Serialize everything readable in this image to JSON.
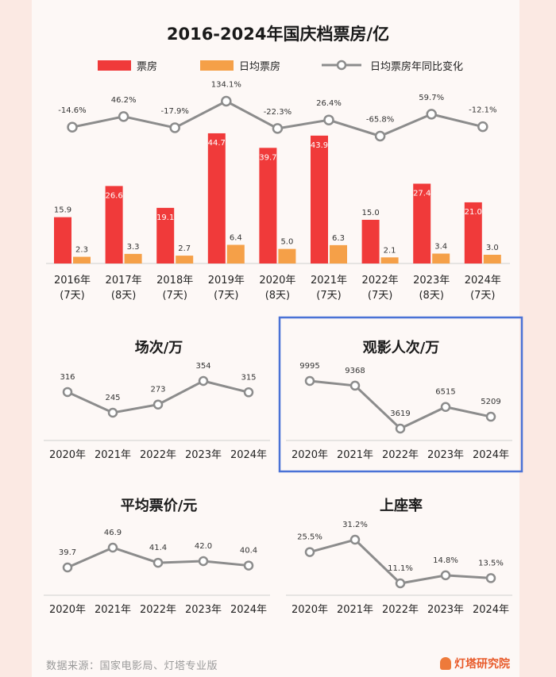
{
  "main_title": "2016-2024年国庆档票房/亿",
  "legend": {
    "box_office": "票房",
    "daily_box_office": "日均票房",
    "yoy_daily": "日均票房年同比变化"
  },
  "colors": {
    "red": "#f03a3a",
    "orange": "#f5a048",
    "line": "#8c8c8c",
    "highlight_border": "#4a72d6"
  },
  "chart_data": [
    {
      "type": "bar",
      "title": "2016-2024年国庆档票房/亿",
      "categories": [
        "2016年",
        "2017年",
        "2018年",
        "2019年",
        "2020年",
        "2021年",
        "2022年",
        "2023年",
        "2024年"
      ],
      "category_sublabels": [
        "(7天)",
        "(8天)",
        "(7天)",
        "(7天)",
        "(8天)",
        "(7天)",
        "(7天)",
        "(8天)",
        "(7天)"
      ],
      "series": [
        {
          "name": "票房",
          "values": [
            15.9,
            26.6,
            19.1,
            44.7,
            39.7,
            43.9,
            15.0,
            27.4,
            21.0
          ]
        },
        {
          "name": "日均票房",
          "values": [
            2.3,
            3.3,
            2.7,
            6.4,
            5.0,
            6.3,
            2.1,
            3.4,
            3.0
          ]
        },
        {
          "name": "日均票房年同比变化",
          "type": "line",
          "values": [
            -14.6,
            46.2,
            -17.9,
            134.1,
            -22.3,
            26.4,
            -65.8,
            59.7,
            -12.1
          ],
          "labels": [
            "-14.6%",
            "46.2%",
            "-17.9%",
            "134.1%",
            "-22.3%",
            "26.4%",
            "-65.8%",
            "59.7%",
            "-12.1%"
          ]
        }
      ]
    },
    {
      "type": "line",
      "title": "场次/万",
      "categories": [
        "2020年",
        "2021年",
        "2022年",
        "2023年",
        "2024年"
      ],
      "values": [
        316,
        245,
        273,
        354,
        315
      ],
      "labels": [
        "316",
        "245",
        "273",
        "354",
        "315"
      ]
    },
    {
      "type": "line",
      "title": "观影人次/万",
      "categories": [
        "2020年",
        "2021年",
        "2022年",
        "2023年",
        "2024年"
      ],
      "values": [
        9995,
        9368,
        3619,
        6515,
        5209
      ],
      "labels": [
        "9995",
        "9368",
        "3619",
        "6515",
        "5209"
      ]
    },
    {
      "type": "line",
      "title": "平均票价/元",
      "categories": [
        "2020年",
        "2021年",
        "2022年",
        "2023年",
        "2024年"
      ],
      "values": [
        39.7,
        46.9,
        41.4,
        42.0,
        40.4
      ],
      "labels": [
        "39.7",
        "46.9",
        "41.4",
        "42.0",
        "40.4"
      ]
    },
    {
      "type": "line",
      "title": "上座率",
      "categories": [
        "2020年",
        "2021年",
        "2022年",
        "2023年",
        "2024年"
      ],
      "values": [
        25.5,
        31.2,
        11.1,
        14.8,
        13.5
      ],
      "labels": [
        "25.5%",
        "31.2%",
        "11.1%",
        "14.8%",
        "13.5%"
      ]
    }
  ],
  "footer": {
    "source": "数据来源：国家电影局、灯塔专业版",
    "logo_text": "灯塔研究院"
  }
}
